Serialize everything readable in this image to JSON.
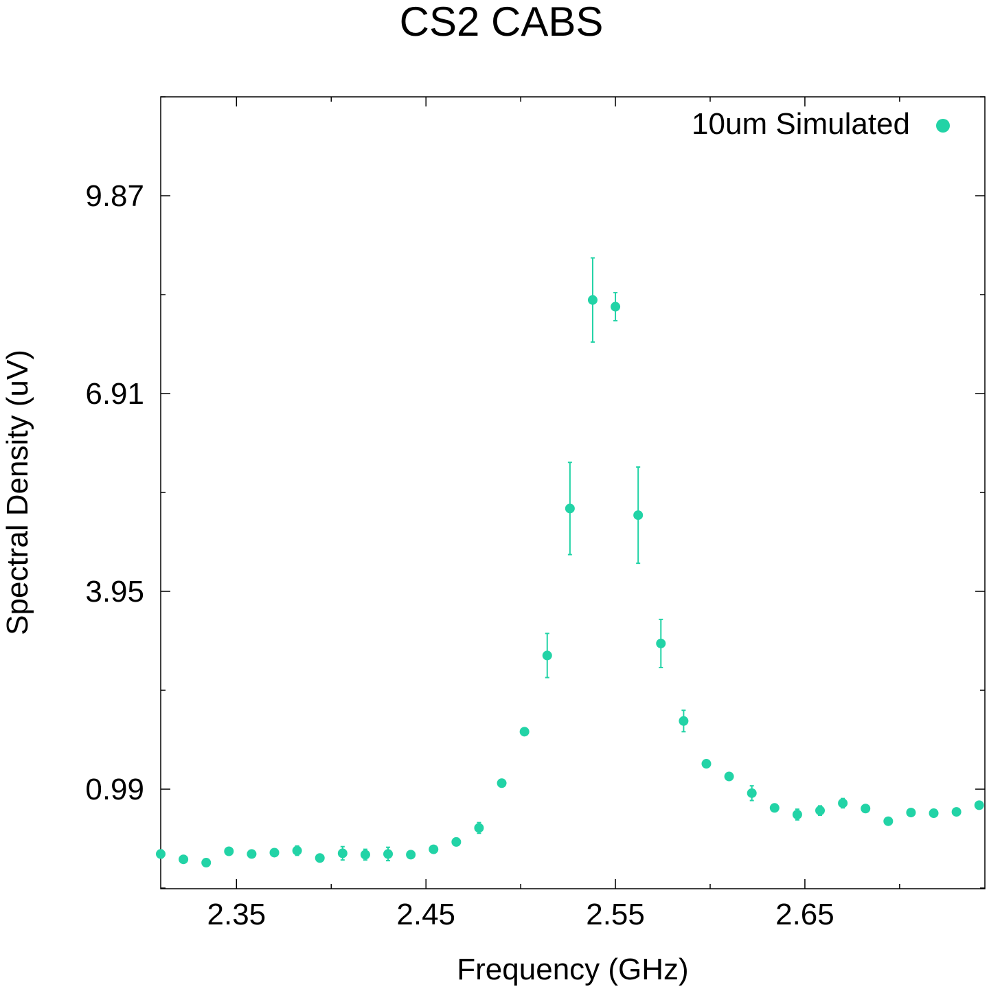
{
  "chart_data": {
    "type": "scatter",
    "title": "CS2 CABS",
    "xlabel": "Frequency (GHz)",
    "ylabel": "Spectral Density (uV)",
    "xlim": [
      2.31,
      2.745
    ],
    "ylim": [
      -0.5,
      11.35
    ],
    "xticks": [
      2.35,
      2.45,
      2.55,
      2.65
    ],
    "xtick_labels": [
      "2.35",
      "2.45",
      "2.55",
      "2.65"
    ],
    "yticks": [
      0.99,
      3.95,
      6.91,
      9.87
    ],
    "ytick_labels": [
      "0.99",
      "3.95",
      "6.91",
      "9.87"
    ],
    "legend_position": "top-right",
    "grid": false,
    "series": [
      {
        "name": "10um Simulated",
        "color": "#22d3a6",
        "points": [
          {
            "x": 2.31,
            "y": 0.02,
            "err": 0.06
          },
          {
            "x": 2.322,
            "y": -0.06,
            "err": 0.04
          },
          {
            "x": 2.334,
            "y": -0.11,
            "err": 0.04
          },
          {
            "x": 2.346,
            "y": 0.06,
            "err": 0.05
          },
          {
            "x": 2.358,
            "y": 0.02,
            "err": 0.04
          },
          {
            "x": 2.37,
            "y": 0.04,
            "err": 0.04
          },
          {
            "x": 2.382,
            "y": 0.07,
            "err": 0.07
          },
          {
            "x": 2.394,
            "y": -0.04,
            "err": 0.04
          },
          {
            "x": 2.406,
            "y": 0.03,
            "err": 0.1
          },
          {
            "x": 2.418,
            "y": 0.01,
            "err": 0.08
          },
          {
            "x": 2.43,
            "y": 0.02,
            "err": 0.1
          },
          {
            "x": 2.442,
            "y": 0.01,
            "err": 0.04
          },
          {
            "x": 2.454,
            "y": 0.09,
            "err": 0.05
          },
          {
            "x": 2.466,
            "y": 0.2,
            "err": 0.05
          },
          {
            "x": 2.478,
            "y": 0.41,
            "err": 0.08
          },
          {
            "x": 2.49,
            "y": 1.08,
            "err": 0.04
          },
          {
            "x": 2.502,
            "y": 1.85,
            "err": 0.05
          },
          {
            "x": 2.514,
            "y": 2.99,
            "err": 0.33
          },
          {
            "x": 2.526,
            "y": 5.19,
            "err": 0.69
          },
          {
            "x": 2.538,
            "y": 8.31,
            "err": 0.63
          },
          {
            "x": 2.55,
            "y": 8.21,
            "err": 0.21
          },
          {
            "x": 2.562,
            "y": 5.09,
            "err": 0.72
          },
          {
            "x": 2.574,
            "y": 3.17,
            "err": 0.36
          },
          {
            "x": 2.586,
            "y": 2.01,
            "err": 0.16
          },
          {
            "x": 2.598,
            "y": 1.37,
            "err": 0.04
          },
          {
            "x": 2.61,
            "y": 1.18,
            "err": 0.04
          },
          {
            "x": 2.622,
            "y": 0.93,
            "err": 0.11
          },
          {
            "x": 2.634,
            "y": 0.71,
            "err": 0.04
          },
          {
            "x": 2.646,
            "y": 0.61,
            "err": 0.08
          },
          {
            "x": 2.658,
            "y": 0.67,
            "err": 0.07
          },
          {
            "x": 2.67,
            "y": 0.78,
            "err": 0.07
          },
          {
            "x": 2.682,
            "y": 0.7,
            "err": 0.05
          },
          {
            "x": 2.694,
            "y": 0.51,
            "err": 0.04
          },
          {
            "x": 2.706,
            "y": 0.64,
            "err": 0.04
          },
          {
            "x": 2.718,
            "y": 0.63,
            "err": 0.04
          },
          {
            "x": 2.73,
            "y": 0.65,
            "err": 0.04
          },
          {
            "x": 2.742,
            "y": 0.75,
            "err": 0.05
          }
        ]
      }
    ]
  }
}
